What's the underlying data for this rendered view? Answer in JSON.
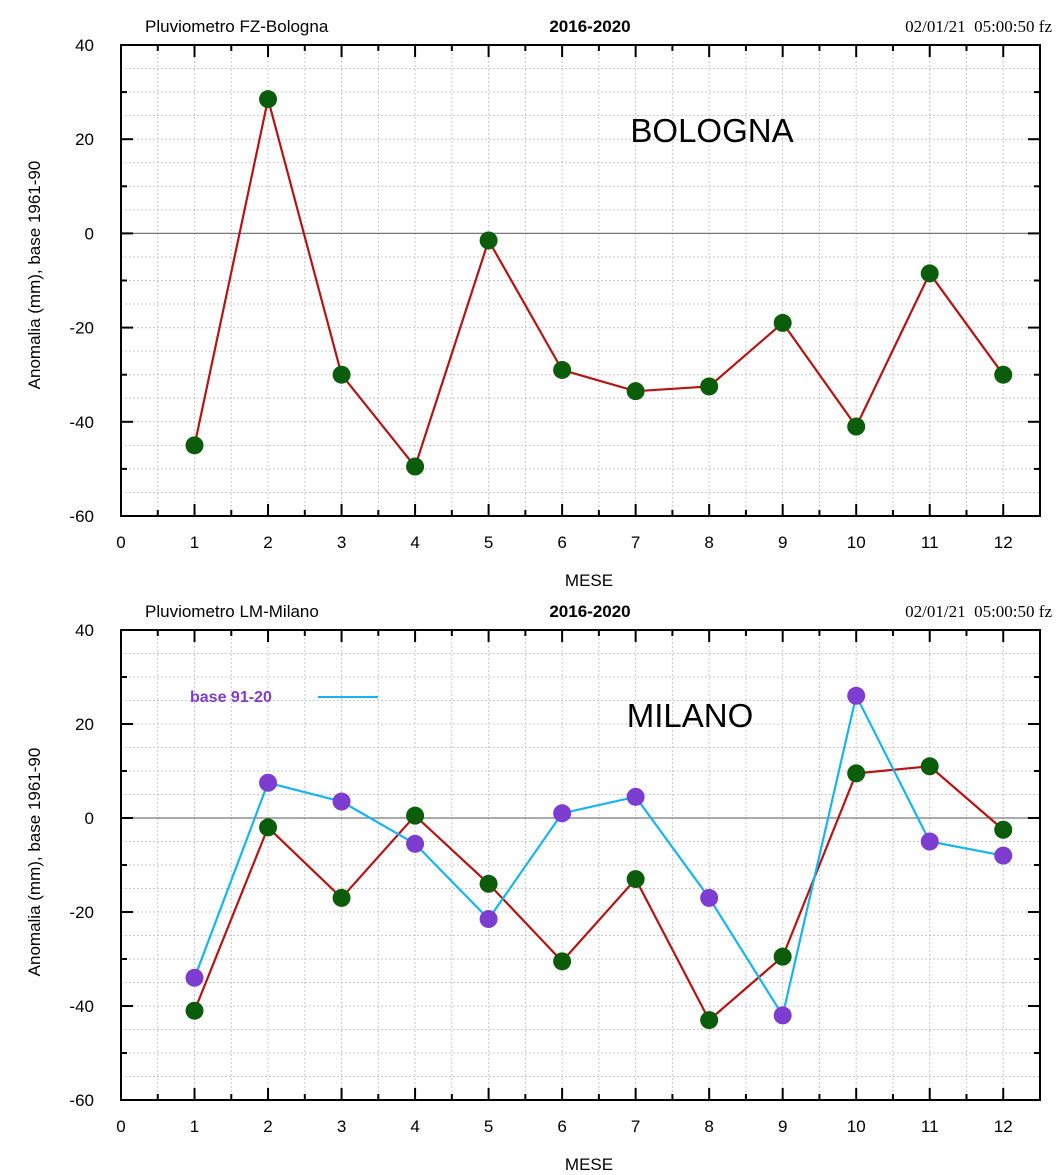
{
  "colors": {
    "primary_line": "#b41414",
    "primary_marker": "#0b5c0b",
    "secondary_line": "#19b4f0",
    "secondary_marker": "#7d3dd0",
    "grid": "#c8c8c8",
    "zero_line": "#777777"
  },
  "chart_data": [
    {
      "type": "line",
      "header_left": "Pluviometro FZ-Bologna",
      "header_center": "2016-2020",
      "header_right": "02/01/21  05:00:50 fz",
      "annotation": "BOLOGNA",
      "xlabel": "MESE",
      "ylabel": "Anomalia (mm), base 1961-90",
      "xlim": [
        0,
        12.5
      ],
      "ylim": [
        -60,
        40
      ],
      "x_ticks": [
        0,
        1,
        2,
        3,
        4,
        5,
        6,
        7,
        8,
        9,
        10,
        11,
        12
      ],
      "y_ticks": [
        -60,
        -40,
        -20,
        0,
        20,
        40
      ],
      "grid": true,
      "legend": "",
      "series": [
        {
          "x": [
            1,
            2,
            3,
            4,
            5,
            6,
            7,
            8,
            9,
            10,
            11,
            12
          ],
          "values": [
            -45,
            28.5,
            -30,
            -49.5,
            -1.5,
            -29,
            -33.5,
            -32.5,
            -19,
            -41,
            -8.5,
            -30
          ]
        }
      ]
    },
    {
      "type": "line",
      "header_left": "Pluviometro LM-Milano",
      "header_center": "2016-2020",
      "header_right": "02/01/21  05:00:50 fz",
      "annotation": "MILANO",
      "xlabel": "MESE",
      "ylabel": "Anomalia (mm), base 1961-90",
      "xlim": [
        0,
        12.5
      ],
      "ylim": [
        -60,
        40
      ],
      "x_ticks": [
        0,
        1,
        2,
        3,
        4,
        5,
        6,
        7,
        8,
        9,
        10,
        11,
        12
      ],
      "y_ticks": [
        -60,
        -40,
        -20,
        0,
        20,
        40
      ],
      "grid": true,
      "legend": "top-left",
      "series": [
        {
          "x": [
            1,
            2,
            3,
            4,
            5,
            6,
            7,
            8,
            9,
            10,
            11,
            12
          ],
          "values": [
            -41,
            -2,
            -17,
            0.5,
            -14,
            -30.5,
            -13,
            -43,
            -29.5,
            9.5,
            11,
            -2.5
          ]
        },
        {
          "name": "base 91-20",
          "x": [
            1,
            2,
            3,
            4,
            5,
            6,
            7,
            8,
            9,
            10,
            11,
            12
          ],
          "values": [
            -34,
            7.5,
            3.5,
            -5.5,
            -21.5,
            1,
            4.5,
            -17,
            -42,
            26,
            -5,
            -8
          ]
        }
      ]
    }
  ]
}
